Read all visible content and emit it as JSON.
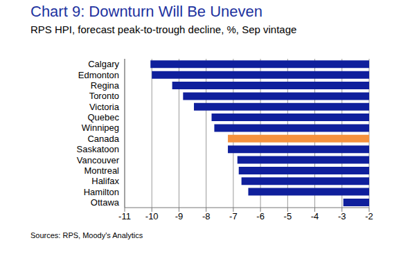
{
  "chart_data": {
    "type": "bar",
    "orientation": "horizontal",
    "title": "Chart 9: Downturn Will Be Uneven",
    "subtitle": "RPS HPI, forecast peak-to-trough decline, %, Sep vintage",
    "source": "Sources: RPS, Moody's Analytics",
    "categories": [
      "Calgary",
      "Edmonton",
      "Regina",
      "Toronto",
      "Victoria",
      "Quebec",
      "Winnipeg",
      "Canada",
      "Saskatoon",
      "Vancouver",
      "Montreal",
      "Halifax",
      "Hamilton",
      "Ottawa"
    ],
    "values": [
      -10.05,
      -10.0,
      -9.25,
      -8.85,
      -8.45,
      -7.8,
      -7.7,
      -7.2,
      -7.2,
      -6.85,
      -6.8,
      -6.7,
      -6.45,
      -2.95
    ],
    "colors": [
      "#0f1f9c",
      "#0f1f9c",
      "#0f1f9c",
      "#0f1f9c",
      "#0f1f9c",
      "#0f1f9c",
      "#0f1f9c",
      "#f5923e",
      "#0f1f9c",
      "#0f1f9c",
      "#0f1f9c",
      "#0f1f9c",
      "#0f1f9c",
      "#0f1f9c"
    ],
    "xlim": [
      -11,
      -2
    ],
    "xticks": [
      -11,
      -10,
      -9,
      -8,
      -7,
      -6,
      -5,
      -4,
      -3,
      -2
    ],
    "grid": true
  }
}
